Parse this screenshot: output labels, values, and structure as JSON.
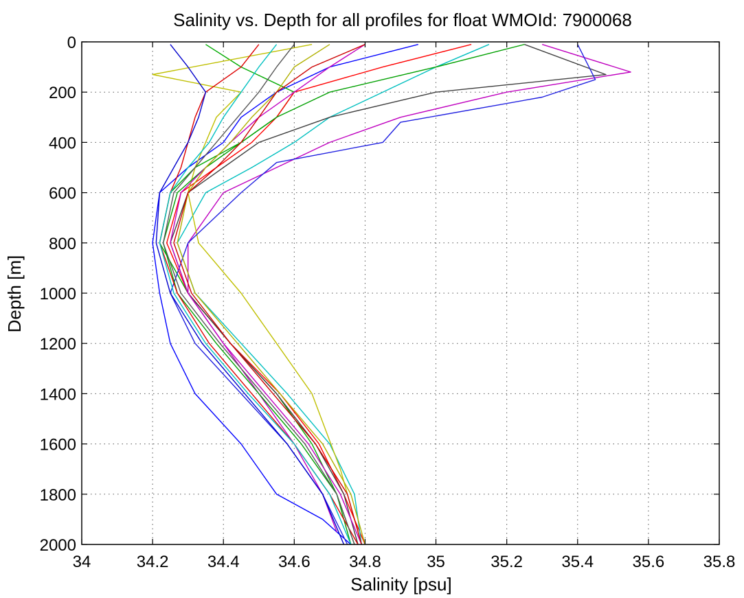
{
  "chart_data": {
    "type": "line",
    "title": "Salinity vs. Depth for all profiles for float WMOId: 7900068",
    "xlabel": "Salinity [psu]",
    "ylabel": "Depth [m]",
    "xlim": [
      34,
      35.8
    ],
    "ylim": [
      2000,
      0
    ],
    "y_axis_inverted": true,
    "grid": true,
    "grid_style": "dotted",
    "legend": "none",
    "xticks": [
      "34",
      "34.2",
      "34.4",
      "34.6",
      "34.8",
      "35",
      "35.2",
      "35.4",
      "35.6",
      "35.8"
    ],
    "yticks": [
      "0",
      "200",
      "400",
      "600",
      "800",
      "1000",
      "1200",
      "1400",
      "1600",
      "1800",
      "2000"
    ],
    "series": [
      {
        "color": "#0000ff",
        "x": [
          34.95,
          34.7,
          34.55,
          34.45,
          34.4,
          34.3,
          34.22,
          34.2,
          34.22,
          34.25,
          34.32,
          34.45,
          34.55,
          34.68,
          34.76
        ],
        "y": [
          10,
          100,
          200,
          300,
          400,
          500,
          600,
          800,
          1000,
          1200,
          1400,
          1600,
          1800,
          1900,
          2000
        ]
      },
      {
        "color": "#00aa00",
        "x": [
          34.35,
          34.45,
          34.6,
          34.55,
          34.45,
          34.32,
          34.25,
          34.22,
          34.3,
          34.42,
          34.55,
          34.65,
          34.72,
          34.77
        ],
        "y": [
          10,
          100,
          200,
          300,
          400,
          500,
          600,
          800,
          1000,
          1200,
          1400,
          1600,
          1800,
          2000
        ]
      },
      {
        "color": "#ff0000",
        "x": [
          35.1,
          34.85,
          34.6,
          34.55,
          34.48,
          34.38,
          34.28,
          34.24,
          34.3,
          34.42,
          34.56,
          34.67,
          34.74,
          34.8
        ],
        "y": [
          10,
          100,
          200,
          300,
          400,
          500,
          600,
          800,
          1000,
          1200,
          1400,
          1600,
          1800,
          2000
        ]
      },
      {
        "color": "#00bfbf",
        "x": [
          35.15,
          35.0,
          34.85,
          34.7,
          34.6,
          34.48,
          34.35,
          34.27,
          34.32,
          34.45,
          34.58,
          34.7,
          34.77,
          34.79
        ],
        "y": [
          10,
          100,
          200,
          300,
          400,
          500,
          600,
          800,
          1000,
          1200,
          1400,
          1600,
          1800,
          2000
        ]
      },
      {
        "color": "#bf00bf",
        "x": [
          35.3,
          35.55,
          35.2,
          34.9,
          34.7,
          34.55,
          34.4,
          34.3,
          34.3,
          34.4,
          34.5,
          34.6,
          34.68,
          34.72
        ],
        "y": [
          10,
          120,
          200,
          300,
          400,
          500,
          600,
          800,
          1000,
          1200,
          1400,
          1600,
          1800,
          1950
        ]
      },
      {
        "color": "#bfbf00",
        "x": [
          34.65,
          34.2,
          34.45,
          34.38,
          34.35,
          34.32,
          34.3,
          34.33,
          34.45,
          34.55,
          34.65,
          34.73,
          34.79
        ],
        "y": [
          10,
          130,
          200,
          300,
          400,
          500,
          600,
          800,
          1000,
          1200,
          1400,
          1700,
          2000
        ]
      },
      {
        "color": "#404040",
        "x": [
          35.25,
          35.48,
          35.0,
          34.7,
          34.5,
          34.4,
          34.3,
          34.25,
          34.3,
          34.42,
          34.55,
          34.66,
          34.74,
          34.78
        ],
        "y": [
          10,
          130,
          200,
          300,
          400,
          500,
          600,
          800,
          1000,
          1200,
          1400,
          1600,
          1800,
          2000
        ]
      },
      {
        "color": "#2020e0",
        "x": [
          35.4,
          35.45,
          35.3,
          34.9,
          34.85,
          34.55,
          34.45,
          34.3,
          34.25,
          34.32,
          34.45,
          34.58,
          34.68,
          34.75
        ],
        "y": [
          10,
          150,
          220,
          320,
          400,
          480,
          600,
          800,
          1000,
          1200,
          1400,
          1600,
          1800,
          2000
        ]
      },
      {
        "color": "#00a000",
        "x": [
          35.25,
          35.0,
          34.7,
          34.55,
          34.45,
          34.35,
          34.27,
          34.23,
          34.27,
          34.38,
          34.5,
          34.62,
          34.72,
          34.76
        ],
        "y": [
          10,
          100,
          200,
          300,
          400,
          500,
          600,
          800,
          1000,
          1200,
          1400,
          1600,
          1800,
          2000
        ]
      },
      {
        "color": "#dd0000",
        "x": [
          34.5,
          34.45,
          34.35,
          34.32,
          34.3,
          34.28,
          34.25,
          34.22,
          34.27,
          34.36,
          34.48,
          34.6,
          34.7,
          34.78
        ],
        "y": [
          10,
          100,
          200,
          300,
          400,
          500,
          600,
          800,
          1000,
          1200,
          1400,
          1600,
          1800,
          2000
        ]
      },
      {
        "color": "#00c0c0",
        "x": [
          34.55,
          34.5,
          34.45,
          34.4,
          34.36,
          34.3,
          34.25,
          34.22,
          34.26,
          34.35,
          34.47,
          34.6,
          34.7,
          34.76
        ],
        "y": [
          10,
          100,
          200,
          300,
          400,
          500,
          600,
          800,
          1000,
          1200,
          1400,
          1600,
          1800,
          2000
        ]
      },
      {
        "color": "#c000c0",
        "x": [
          34.8,
          34.7,
          34.6,
          34.5,
          34.42,
          34.35,
          34.28,
          34.25,
          34.3,
          34.4,
          34.52,
          34.64,
          34.73,
          34.79
        ],
        "y": [
          10,
          100,
          200,
          300,
          400,
          500,
          600,
          800,
          1000,
          1200,
          1400,
          1600,
          1800,
          2000
        ]
      },
      {
        "color": "#b0b000",
        "x": [
          34.7,
          34.6,
          34.55,
          34.48,
          34.42,
          34.35,
          34.3,
          34.27,
          34.32,
          34.44,
          34.56,
          34.68,
          34.76,
          34.8
        ],
        "y": [
          10,
          100,
          200,
          300,
          400,
          500,
          600,
          800,
          1000,
          1200,
          1400,
          1600,
          1800,
          2000
        ]
      },
      {
        "color": "#0000cc",
        "x": [
          34.25,
          34.3,
          34.35,
          34.33,
          34.3,
          34.26,
          34.22,
          34.21,
          34.25,
          34.34,
          34.46,
          34.58,
          34.68,
          34.74
        ],
        "y": [
          10,
          100,
          200,
          300,
          400,
          500,
          600,
          800,
          1000,
          1200,
          1400,
          1600,
          1800,
          2000
        ]
      },
      {
        "color": "#555555",
        "x": [
          34.6,
          34.55,
          34.5,
          34.44,
          34.38,
          34.32,
          34.26,
          34.23,
          34.28,
          34.39,
          34.51,
          34.63,
          34.72,
          34.77
        ],
        "y": [
          10,
          100,
          200,
          300,
          400,
          500,
          600,
          800,
          1000,
          1200,
          1400,
          1600,
          1800,
          2000
        ]
      },
      {
        "color": "#cc0000",
        "x": [
          34.8,
          34.65,
          34.55,
          34.5,
          34.45,
          34.38,
          34.3,
          34.26,
          34.31,
          34.42,
          34.54,
          34.66,
          34.75,
          34.79
        ],
        "y": [
          10,
          100,
          200,
          300,
          400,
          500,
          600,
          800,
          1000,
          1200,
          1400,
          1600,
          1800,
          2000
        ]
      }
    ]
  }
}
